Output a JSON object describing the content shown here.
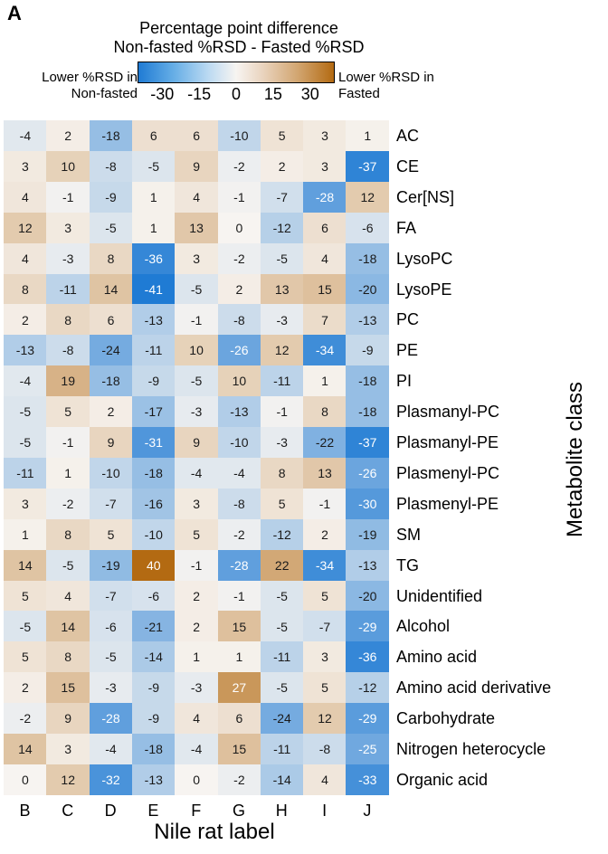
{
  "panel_letter": "A",
  "chart_data": {
    "type": "heatmap",
    "title_lines": [
      "Percentage point difference",
      "Non-fasted %RSD - Fasted %RSD"
    ],
    "xlabel": "Nile rat label",
    "ylabel": "Metabolite class",
    "colorbar": {
      "range": [
        -40,
        40
      ],
      "ticks": [
        "-30",
        "-15",
        "0",
        "15",
        "30"
      ],
      "low_label": [
        "Lower %RSD in",
        "Non-fasted"
      ],
      "high_label": [
        "Lower %RSD in",
        "Fasted"
      ],
      "low_color": "#1f7bd4",
      "mid_color": "#f7f4f1",
      "high_color": "#b36a12"
    },
    "columns": [
      "B",
      "C",
      "D",
      "E",
      "F",
      "G",
      "H",
      "I",
      "J"
    ],
    "rows": [
      "AC",
      "CE",
      "Cer[NS]",
      "FA",
      "LysoPC",
      "LysoPE",
      "PC",
      "PE",
      "PI",
      "Plasmanyl-PC",
      "Plasmanyl-PE",
      "Plasmenyl-PC",
      "Plasmenyl-PE",
      "SM",
      "TG",
      "Unidentified",
      "Alcohol",
      "Amino acid",
      "Amino acid derivative",
      "Carbohydrate",
      "Nitrogen heterocycle",
      "Organic acid"
    ],
    "values": [
      [
        -4,
        2,
        -18,
        6,
        6,
        -10,
        5,
        3,
        1
      ],
      [
        3,
        10,
        -8,
        -5,
        9,
        -2,
        2,
        3,
        -37
      ],
      [
        4,
        -1,
        -9,
        1,
        4,
        -1,
        -7,
        -28,
        12
      ],
      [
        12,
        3,
        -5,
        1,
        13,
        0,
        -12,
        6,
        -6
      ],
      [
        4,
        -3,
        8,
        -36,
        3,
        -2,
        -5,
        4,
        -18
      ],
      [
        8,
        -11,
        14,
        -41,
        -5,
        2,
        13,
        15,
        -20
      ],
      [
        2,
        8,
        6,
        -13,
        -1,
        -8,
        -3,
        7,
        -13
      ],
      [
        -13,
        -8,
        -24,
        -11,
        10,
        -26,
        12,
        -34,
        -9
      ],
      [
        -4,
        19,
        -18,
        -9,
        -5,
        10,
        -11,
        1,
        -18
      ],
      [
        -5,
        5,
        2,
        -17,
        -3,
        -13,
        -1,
        8,
        -18
      ],
      [
        -5,
        -1,
        9,
        -31,
        9,
        -10,
        -3,
        -22,
        -37
      ],
      [
        -11,
        1,
        -10,
        -18,
        -4,
        -4,
        8,
        13,
        -26
      ],
      [
        3,
        -2,
        -7,
        -16,
        3,
        -8,
        5,
        -1,
        -30
      ],
      [
        1,
        8,
        5,
        -10,
        5,
        -2,
        -12,
        2,
        -19
      ],
      [
        14,
        -5,
        -19,
        40,
        -1,
        -28,
        22,
        -34,
        -13
      ],
      [
        5,
        4,
        -7,
        -6,
        2,
        -1,
        -5,
        5,
        -20
      ],
      [
        -5,
        14,
        -6,
        -21,
        2,
        15,
        -5,
        -7,
        -29
      ],
      [
        5,
        8,
        -5,
        -14,
        1,
        1,
        -11,
        3,
        -36
      ],
      [
        2,
        15,
        -3,
        -9,
        -3,
        27,
        -5,
        5,
        -12
      ],
      [
        -2,
        9,
        -28,
        -9,
        4,
        6,
        -24,
        12,
        -29
      ],
      [
        14,
        3,
        -4,
        -18,
        -4,
        15,
        -11,
        -8,
        -25
      ],
      [
        0,
        12,
        -32,
        -13,
        0,
        -2,
        -14,
        4,
        -33
      ]
    ]
  }
}
